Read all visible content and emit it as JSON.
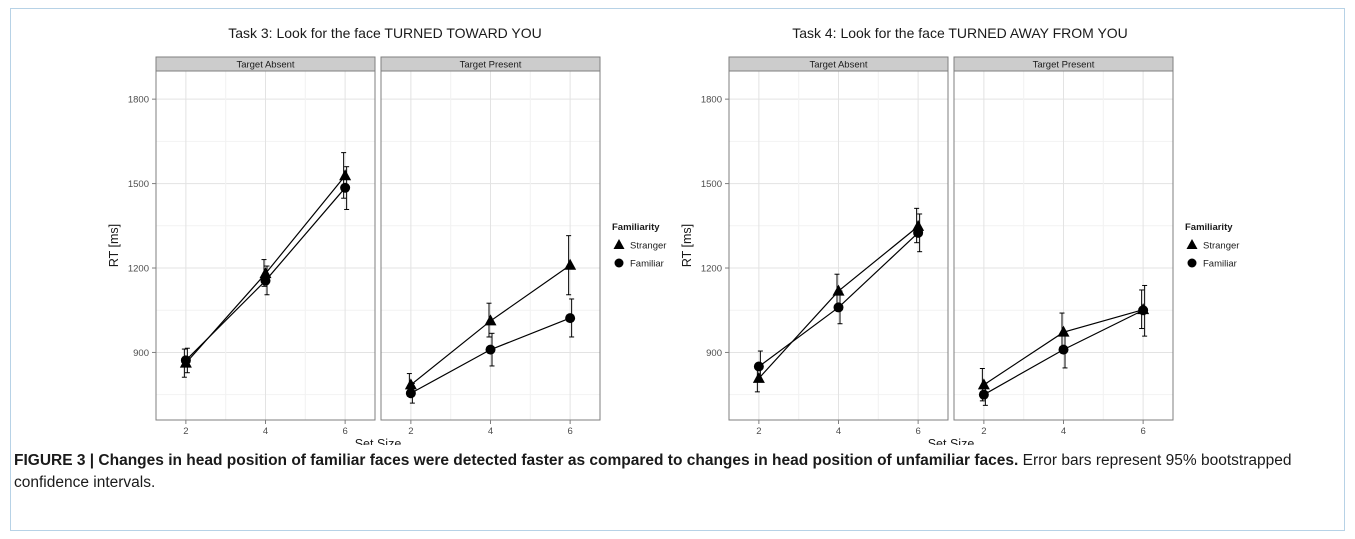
{
  "caption": {
    "bold": "FIGURE 3 | Changes in head position of familiar faces were detected faster as compared to changes in head position of unfamiliar faces.",
    "rest": " Error bars represent 95% bootstrapped confidence intervals."
  },
  "chart_data": [
    {
      "type": "line",
      "title": "Task 3: Look for the face TURNED TOWARD YOU",
      "xlabel": "Set Size",
      "ylabel": "RT [ms]",
      "x_ticks": [
        2,
        4,
        6
      ],
      "y_ticks": [
        900,
        1200,
        1500,
        1800
      ],
      "xlim": [
        1.25,
        6.75
      ],
      "ylim": [
        660,
        1900
      ],
      "legend": {
        "title": "Familiarity",
        "position": "right"
      },
      "facets": [
        {
          "label": "Target Absent",
          "series": [
            {
              "name": "Stranger",
              "marker": "triangle",
              "x": [
                2,
                4,
                6
              ],
              "y": [
                862,
                1180,
                1528
              ],
              "ci_low": [
                812,
                1135,
                1448
              ],
              "ci_high": [
                912,
                1230,
                1610
              ]
            },
            {
              "name": "Familiar",
              "marker": "circle",
              "x": [
                2,
                4,
                6
              ],
              "y": [
                872,
                1155,
                1485
              ],
              "ci_low": [
                828,
                1105,
                1408
              ],
              "ci_high": [
                915,
                1207,
                1560
              ]
            }
          ]
        },
        {
          "label": "Target Present",
          "series": [
            {
              "name": "Stranger",
              "marker": "triangle",
              "x": [
                2,
                4,
                6
              ],
              "y": [
                785,
                1012,
                1210
              ],
              "ci_low": [
                745,
                955,
                1105
              ],
              "ci_high": [
                825,
                1075,
                1315
              ]
            },
            {
              "name": "Familiar",
              "marker": "circle",
              "x": [
                2,
                4,
                6
              ],
              "y": [
                755,
                910,
                1022
              ],
              "ci_low": [
                720,
                852,
                955
              ],
              "ci_high": [
                790,
                968,
                1090
              ]
            }
          ]
        }
      ]
    },
    {
      "type": "line",
      "title": "Task 4: Look for the face TURNED AWAY FROM YOU",
      "xlabel": "Set Size",
      "ylabel": "RT [ms]",
      "x_ticks": [
        2,
        4,
        6
      ],
      "y_ticks": [
        900,
        1200,
        1500,
        1800
      ],
      "xlim": [
        1.25,
        6.75
      ],
      "ylim": [
        660,
        1900
      ],
      "legend": {
        "title": "Familiarity",
        "position": "right"
      },
      "facets": [
        {
          "label": "Target Absent",
          "series": [
            {
              "name": "Stranger",
              "marker": "triangle",
              "x": [
                2,
                4,
                6
              ],
              "y": [
                808,
                1118,
                1348
              ],
              "ci_low": [
                760,
                1062,
                1290
              ],
              "ci_high": [
                852,
                1178,
                1412
              ]
            },
            {
              "name": "Familiar",
              "marker": "circle",
              "x": [
                2,
                4,
                6
              ],
              "y": [
                850,
                1060,
                1325
              ],
              "ci_low": [
                800,
                1002,
                1258
              ],
              "ci_high": [
                905,
                1118,
                1392
              ]
            }
          ]
        },
        {
          "label": "Target Present",
          "series": [
            {
              "name": "Stranger",
              "marker": "triangle",
              "x": [
                2,
                4,
                6
              ],
              "y": [
                785,
                972,
                1052
              ],
              "ci_low": [
                728,
                905,
                985
              ],
              "ci_high": [
                843,
                1040,
                1122
              ]
            },
            {
              "name": "Familiar",
              "marker": "circle",
              "x": [
                2,
                4,
                6
              ],
              "y": [
                750,
                910,
                1050
              ],
              "ci_low": [
                712,
                845,
                958
              ],
              "ci_high": [
                792,
                975,
                1138
              ]
            }
          ]
        }
      ]
    }
  ]
}
